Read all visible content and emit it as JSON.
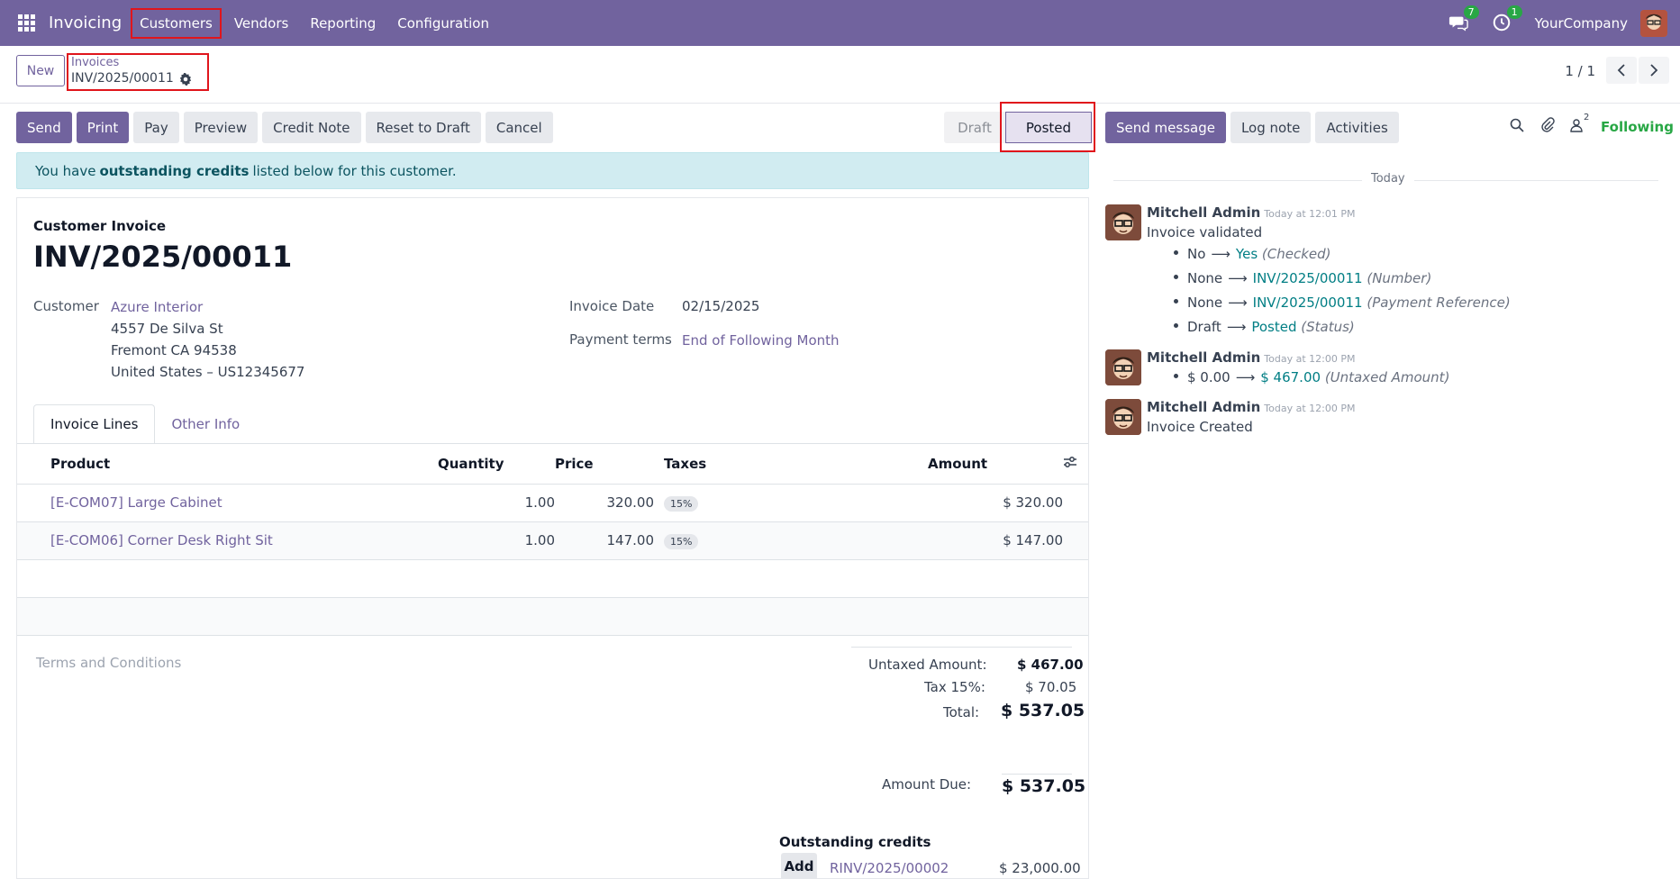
{
  "navbar": {
    "app_name": "Invoicing",
    "menu": [
      "Customers",
      "Vendors",
      "Reporting",
      "Configuration"
    ],
    "messages_count": "7",
    "activities_count": "1",
    "company": "YourCompany"
  },
  "control": {
    "new_label": "New",
    "breadcrumb_parent": "Invoices",
    "breadcrumb_current": "INV/2025/00011",
    "pager": "1 / 1"
  },
  "actions": [
    "Send",
    "Print",
    "Pay",
    "Preview",
    "Credit Note",
    "Reset to Draft",
    "Cancel"
  ],
  "status": {
    "draft": "Draft",
    "posted": "Posted"
  },
  "alert": {
    "prefix": "You have",
    "bold": "outstanding credits",
    "suffix": "listed below for this customer."
  },
  "invoice": {
    "doc_type": "Customer Invoice",
    "name": "INV/2025/00011",
    "customer_label": "Customer",
    "customer_name": "Azure Interior",
    "address1": "4557 De Silva St",
    "address2": "Fremont CA 94538",
    "address3": "United States – US12345677",
    "invoice_date_label": "Invoice Date",
    "invoice_date": "02/15/2025",
    "payment_terms_label": "Payment terms",
    "payment_terms": "End of Following Month"
  },
  "tabs": [
    "Invoice Lines",
    "Other Info"
  ],
  "lines": {
    "headers": {
      "product": "Product",
      "quantity": "Quantity",
      "price": "Price",
      "taxes": "Taxes",
      "amount": "Amount"
    },
    "rows": [
      {
        "product": "[E-COM07] Large Cabinet",
        "quantity": "1.00",
        "price": "320.00",
        "tax": "15%",
        "amount": "$ 320.00"
      },
      {
        "product": "[E-COM06] Corner Desk Right Sit",
        "quantity": "1.00",
        "price": "147.00",
        "tax": "15%",
        "amount": "$ 147.00"
      }
    ]
  },
  "terms_placeholder": "Terms and Conditions",
  "totals": {
    "untaxed_label": "Untaxed Amount:",
    "untaxed": "$ 467.00",
    "tax_label": "Tax 15%:",
    "tax": "$ 70.05",
    "total_label": "Total:",
    "total": "$ 537.05",
    "due_label": "Amount Due:",
    "due": "$ 537.05"
  },
  "outstanding": {
    "title": "Outstanding credits",
    "add_label": "Add",
    "ref": "RINV/2025/00002",
    "amount": "$ 23,000.00"
  },
  "chatter": {
    "send_message": "Send message",
    "log_note": "Log note",
    "activities": "Activities",
    "followers_count": "2",
    "following": "Following",
    "today": "Today",
    "messages": [
      {
        "author": "Mitchell Admin",
        "time": "Today at 12:01 PM",
        "body": "Invoice validated",
        "changes": [
          {
            "old": "No",
            "new": "Yes",
            "field": "(Checked)"
          },
          {
            "old": "None",
            "new": "INV/2025/00011",
            "field": "(Number)"
          },
          {
            "old": "None",
            "new": "INV/2025/00011",
            "field": "(Payment Reference)"
          },
          {
            "old": "Draft",
            "new": "Posted",
            "field": "(Status)"
          }
        ]
      },
      {
        "author": "Mitchell Admin",
        "time": "Today at 12:00 PM",
        "body": "",
        "changes": [
          {
            "old": "$ 0.00",
            "new": "$ 467.00",
            "field": "(Untaxed Amount)"
          }
        ]
      },
      {
        "author": "Mitchell Admin",
        "time": "Today at 12:00 PM",
        "body": "Invoice Created",
        "changes": []
      }
    ]
  },
  "colors": {
    "brand": "#71639e",
    "highlight": "#e0151c",
    "success": "#28a745",
    "link_new": "#017e84"
  }
}
